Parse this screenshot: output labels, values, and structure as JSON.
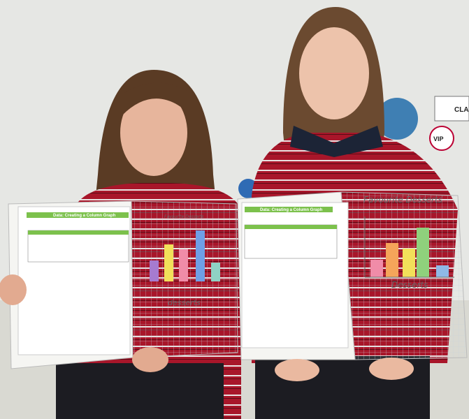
{
  "photo": {
    "worksheets": [
      {
        "title": "Data: Creating a Column Graph",
        "graph_title": "Favourite Desserts",
        "axis_label": "desserts"
      },
      {
        "title": "Data: Creating a Column Graph",
        "graph_title": "Favourite Desserts",
        "axis_label": "Desserts"
      }
    ],
    "wall_signs": [
      "CLA",
      "VIP"
    ]
  }
}
